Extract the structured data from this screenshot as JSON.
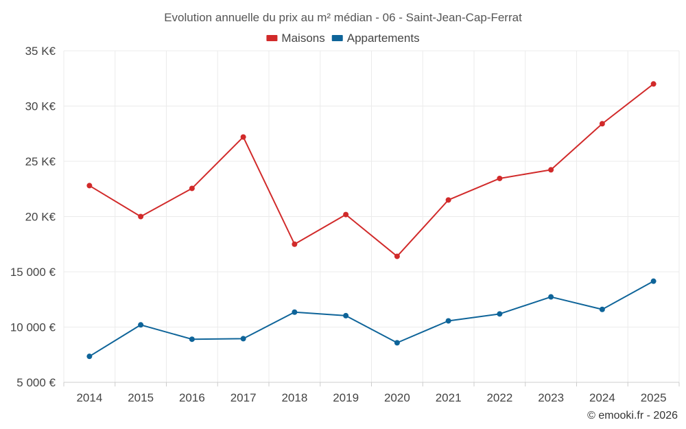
{
  "chart_data": {
    "type": "line",
    "title": "Evolution annuelle du prix au m² médian - 06 - Saint-Jean-Cap-Ferrat",
    "categories": [
      "2014",
      "2015",
      "2016",
      "2017",
      "2018",
      "2019",
      "2020",
      "2021",
      "2022",
      "2023",
      "2024",
      "2025"
    ],
    "series": [
      {
        "name": "Maisons",
        "color": "#d12a2a",
        "values": [
          22800,
          20000,
          22550,
          27200,
          17500,
          20180,
          16400,
          21500,
          23450,
          24230,
          28400,
          32000
        ]
      },
      {
        "name": "Appartements",
        "color": "#0e6499",
        "values": [
          7350,
          10200,
          8900,
          8950,
          11350,
          11030,
          8580,
          10560,
          11190,
          12730,
          11600,
          14150
        ]
      }
    ],
    "ylim": [
      5000,
      35000
    ],
    "yticks": [
      {
        "value": 35000,
        "label": "35 K€"
      },
      {
        "value": 30000,
        "label": "30 K€"
      },
      {
        "value": 25000,
        "label": "25 K€"
      },
      {
        "value": 20000,
        "label": "20 K€"
      },
      {
        "value": 15000,
        "label": "15 000 €"
      },
      {
        "value": 10000,
        "label": "10 000 €"
      },
      {
        "value": 5000,
        "label": "5 000 €"
      }
    ],
    "legend_position": "top-center",
    "grid": true,
    "xlabel": "",
    "ylabel": ""
  },
  "credit": "© emooki.fr - 2026"
}
